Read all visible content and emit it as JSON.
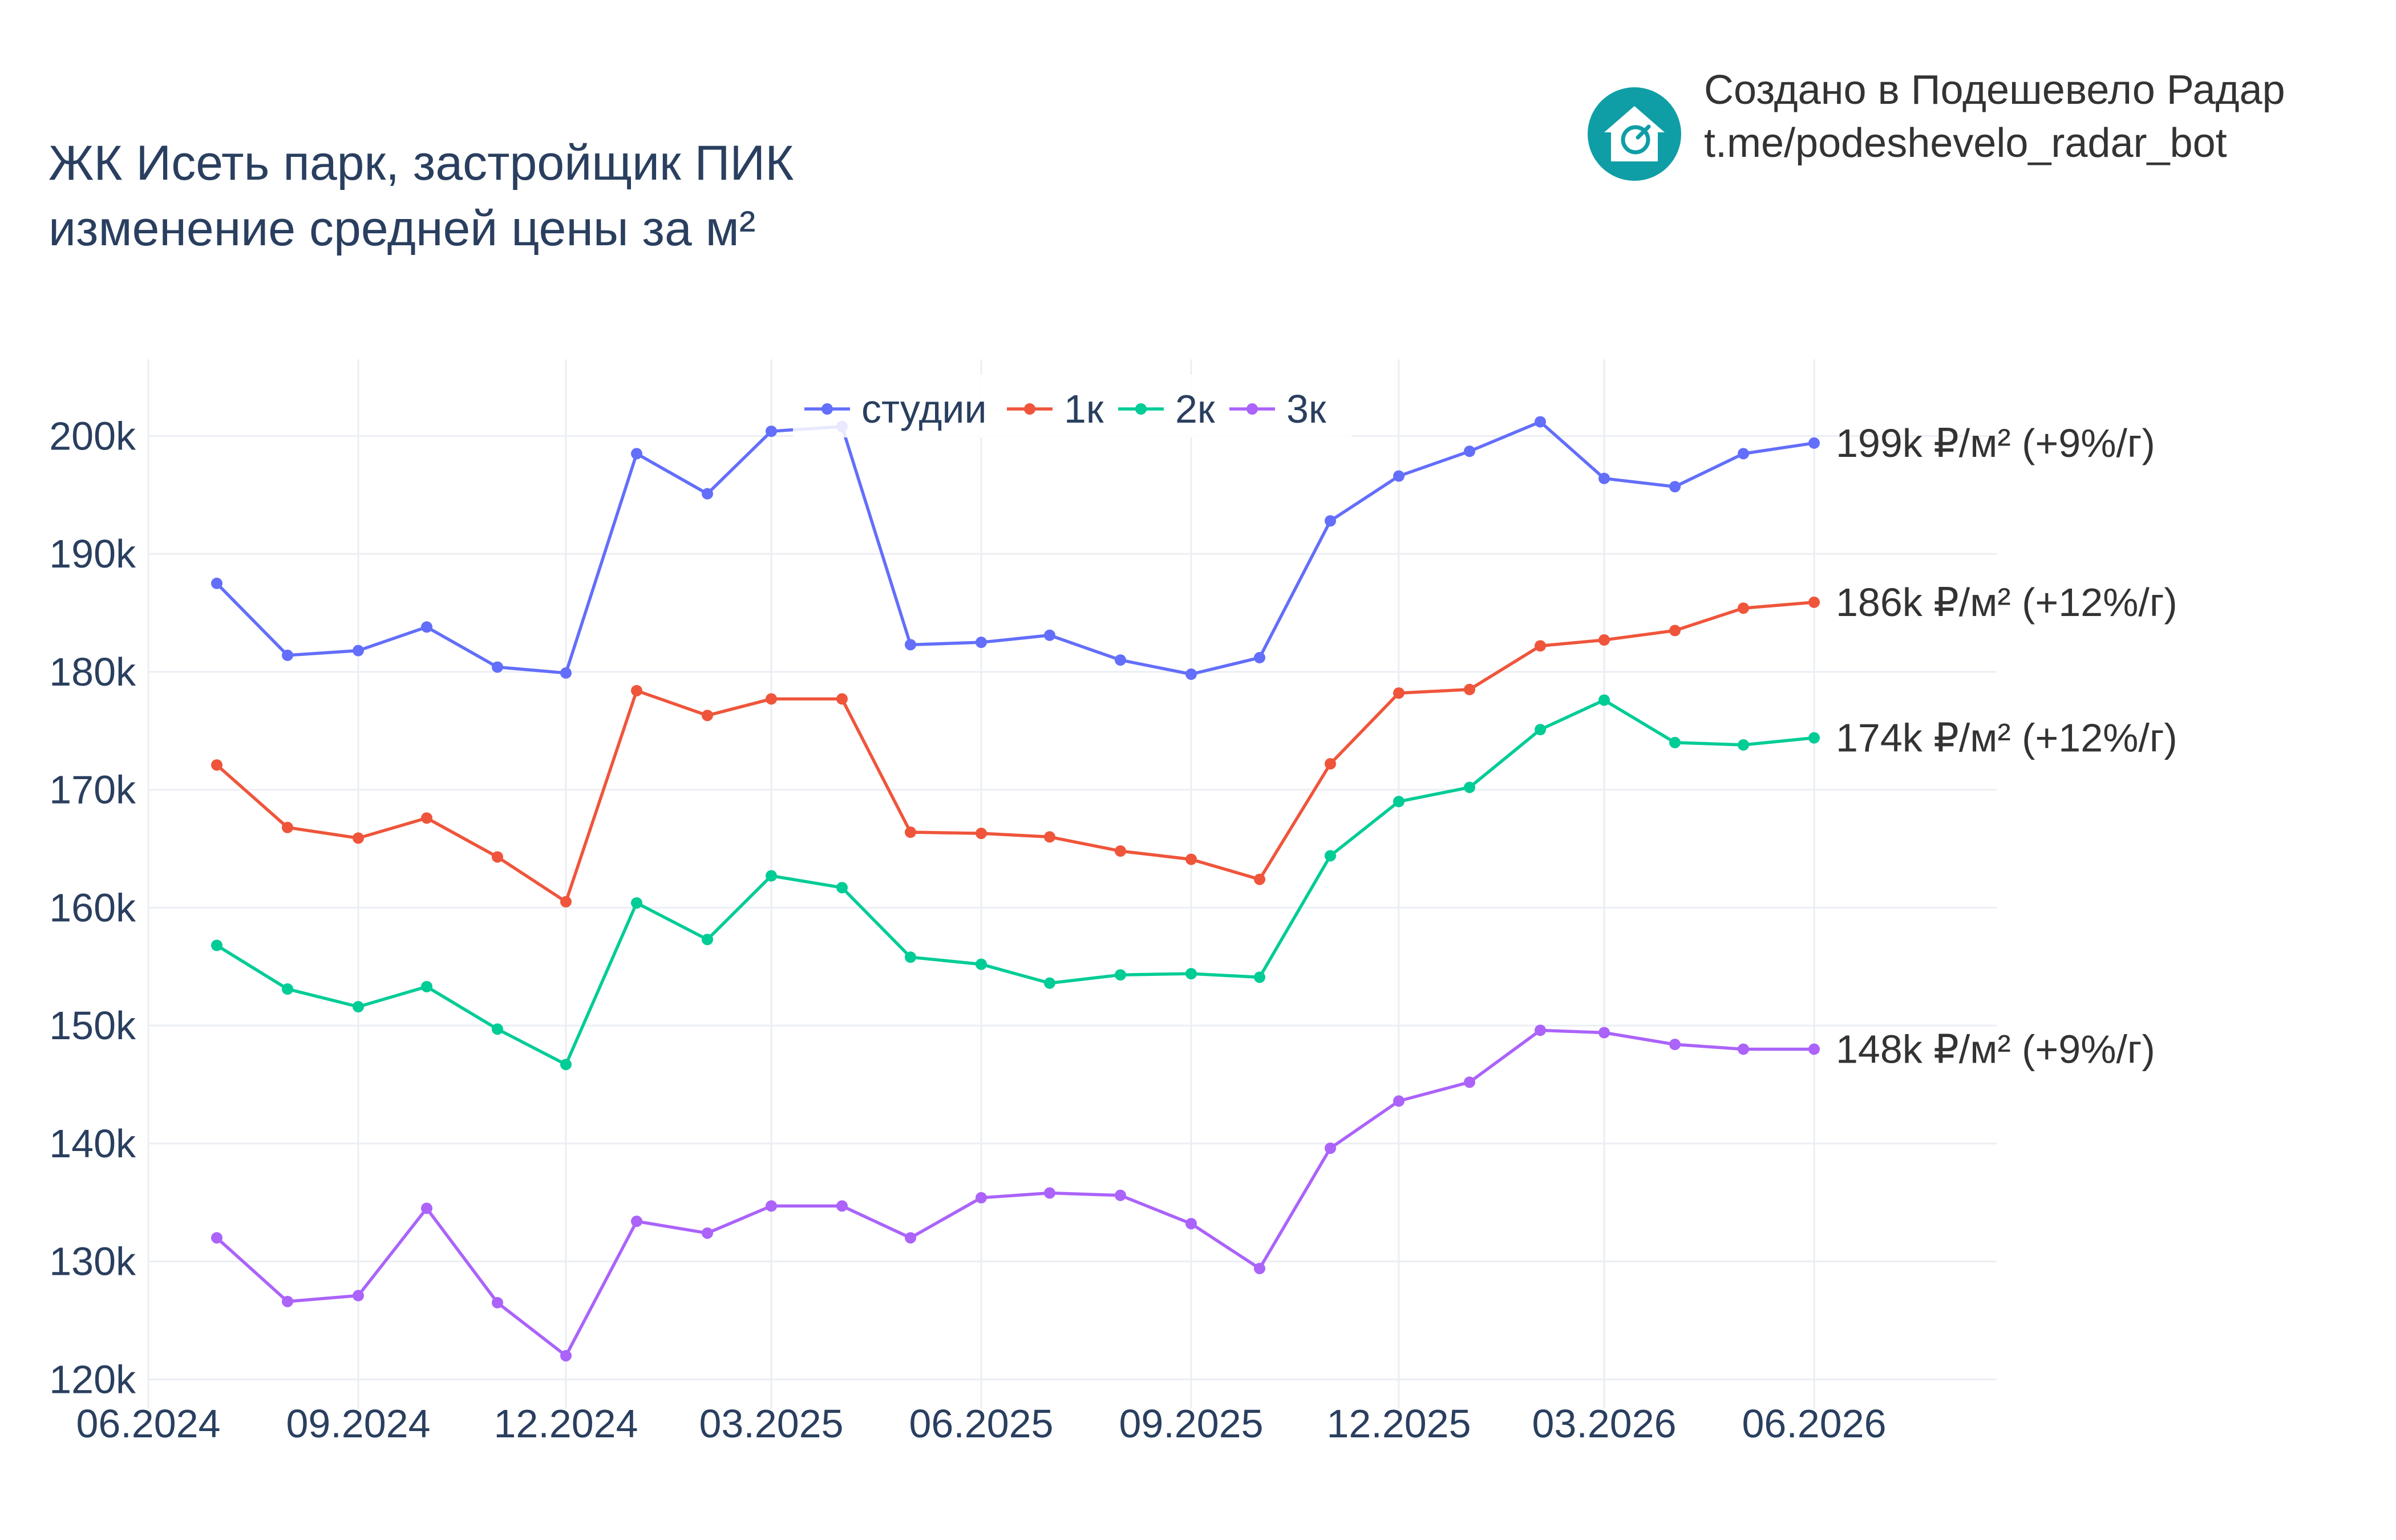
{
  "header": {
    "title_line1": "ЖК Исеть парк, застройщик ПИК",
    "title_line2": "изменение средней цены за м²"
  },
  "credit": {
    "line1": "Создано в Подешевело Радар",
    "line2": "t.me/podeshevelo_radar_bot",
    "logo_icon": "house-logo-icon",
    "logo_color": "#0f9ea6"
  },
  "chart_data": {
    "type": "line",
    "x_tick_labels": [
      "06.2024",
      "09.2024",
      "12.2024",
      "03.2025",
      "06.2025",
      "09.2025",
      "12.2025",
      "03.2026",
      "06.2026"
    ],
    "x": [
      "2024-07",
      "2024-08",
      "2024-09",
      "2024-10",
      "2024-11",
      "2024-12",
      "2025-01",
      "2025-02",
      "2025-03",
      "2025-04",
      "2025-05",
      "2025-06",
      "2025-07",
      "2025-08",
      "2025-09",
      "2025-10",
      "2025-11",
      "2025-12",
      "2026-01",
      "2026-02",
      "2026-03",
      "2026-04",
      "2026-05",
      "2026-06"
    ],
    "y_ticks": [
      120000,
      130000,
      140000,
      150000,
      160000,
      170000,
      180000,
      190000,
      200000
    ],
    "y_tick_labels": [
      "120k",
      "130k",
      "140k",
      "150k",
      "160k",
      "170k",
      "180k",
      "190k",
      "200k"
    ],
    "ylim": [
      117500,
      206500
    ],
    "xlim": [
      "2024-06-01",
      "2026-08-20"
    ],
    "grid": true,
    "legend_position": "top-center",
    "series": [
      {
        "name": "студии",
        "color": "#636efa",
        "end_label": "199k ₽/м² (+9%/г)",
        "values": [
          187500,
          181400,
          181800,
          183800,
          180400,
          179900,
          198500,
          195100,
          200400,
          200800,
          182300,
          182500,
          183100,
          181000,
          179800,
          181200,
          192800,
          196600,
          198700,
          201200,
          196400,
          195700,
          198500,
          199400
        ]
      },
      {
        "name": "1к",
        "color": "#ef553b",
        "end_label": "186k ₽/м² (+12%/г)",
        "values": [
          172100,
          166800,
          165900,
          167600,
          164300,
          160500,
          178400,
          176300,
          177700,
          177700,
          166400,
          166300,
          166000,
          164800,
          164100,
          162400,
          172200,
          178200,
          178500,
          182200,
          182700,
          183500,
          185400,
          185900
        ]
      },
      {
        "name": "2к",
        "color": "#00cc96",
        "end_label": "174k ₽/м² (+12%/г)",
        "values": [
          156800,
          153100,
          151600,
          153300,
          149700,
          146700,
          160400,
          157300,
          162700,
          161700,
          155800,
          155200,
          153600,
          154300,
          154400,
          154100,
          164400,
          169000,
          170200,
          175100,
          177600,
          174000,
          173800,
          174400
        ]
      },
      {
        "name": "3к",
        "color": "#ab63fa",
        "end_label": "148k ₽/м² (+9%/г)",
        "values": [
          132000,
          126600,
          127100,
          134500,
          126500,
          122000,
          133400,
          132400,
          134700,
          134700,
          132000,
          135400,
          135800,
          135600,
          133200,
          129400,
          139600,
          143600,
          145200,
          149600,
          149400,
          148400,
          148000,
          148000
        ]
      }
    ]
  }
}
